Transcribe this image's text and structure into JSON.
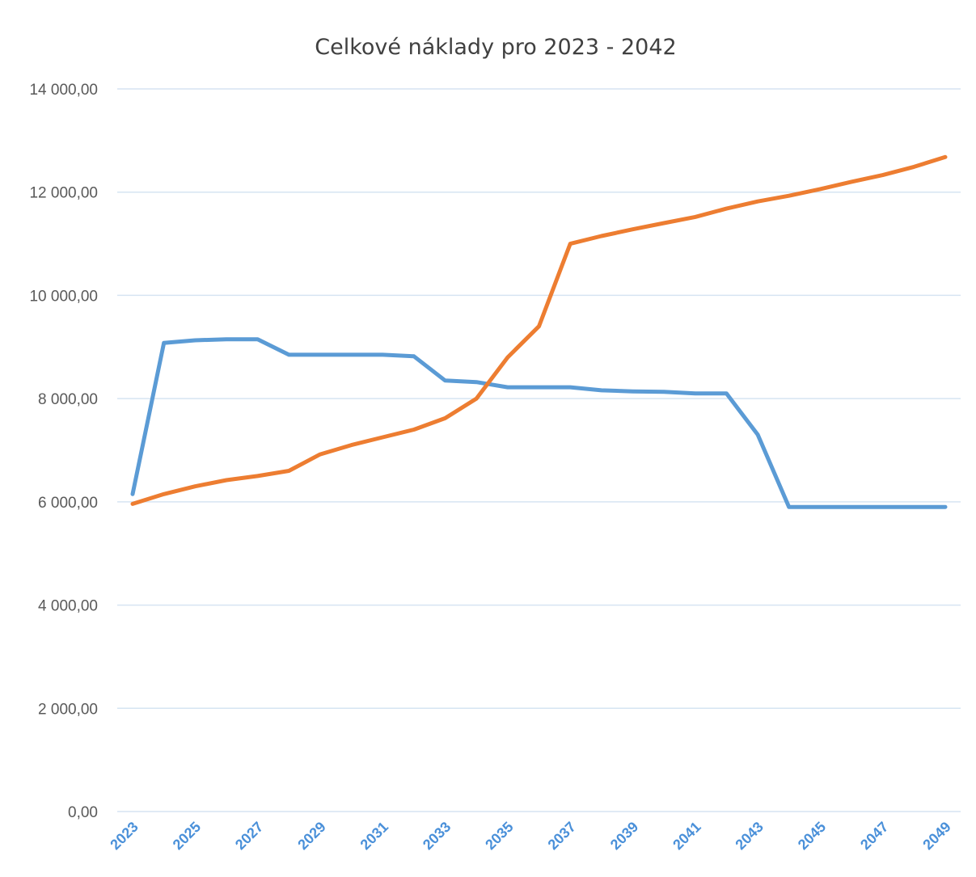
{
  "chart_data": {
    "type": "line",
    "title": "Celkové náklady pro 2023 - 2042",
    "xlabel": "",
    "ylabel": "",
    "ylim": [
      0,
      14000
    ],
    "yticks": [
      "0,00",
      "2 000,00",
      "4 000,00",
      "6 000,00",
      "8 000,00",
      "10 000,00",
      "12 000,00",
      "14 000,00"
    ],
    "ytick_values": [
      0,
      2000,
      4000,
      6000,
      8000,
      10000,
      12000,
      14000
    ],
    "x": [
      2023,
      2024,
      2025,
      2026,
      2027,
      2028,
      2029,
      2030,
      2031,
      2032,
      2033,
      2034,
      2035,
      2036,
      2037,
      2038,
      2039,
      2040,
      2041,
      2042,
      2043,
      2044,
      2045,
      2046,
      2047,
      2048,
      2049
    ],
    "xtick_labels": [
      "2023",
      "2025",
      "2027",
      "2029",
      "2031",
      "2033",
      "2035",
      "2037",
      "2039",
      "2041",
      "2043",
      "2045",
      "2047",
      "2049"
    ],
    "xtick_values": [
      2023,
      2025,
      2027,
      2029,
      2031,
      2033,
      2035,
      2037,
      2039,
      2041,
      2043,
      2045,
      2047,
      2049
    ],
    "grid": true,
    "legend": "none",
    "series": [
      {
        "color": "#5b9bd5",
        "values": [
          6150,
          9080,
          9130,
          9150,
          9150,
          8850,
          8850,
          8850,
          8850,
          8820,
          8350,
          8320,
          8220,
          8220,
          8220,
          8160,
          8140,
          8130,
          8100,
          8100,
          7300,
          5900,
          5900,
          5900,
          5900,
          5900,
          5900
        ]
      },
      {
        "color": "#ed7d31",
        "values": [
          5960,
          6150,
          6300,
          6420,
          6500,
          6600,
          6920,
          7100,
          7250,
          7400,
          7620,
          8000,
          8800,
          9400,
          11000,
          11150,
          11280,
          11400,
          11520,
          11680,
          11820,
          11930,
          12060,
          12200,
          12330,
          12490,
          12680
        ]
      }
    ],
    "xtick_color": "#4a90d9"
  }
}
